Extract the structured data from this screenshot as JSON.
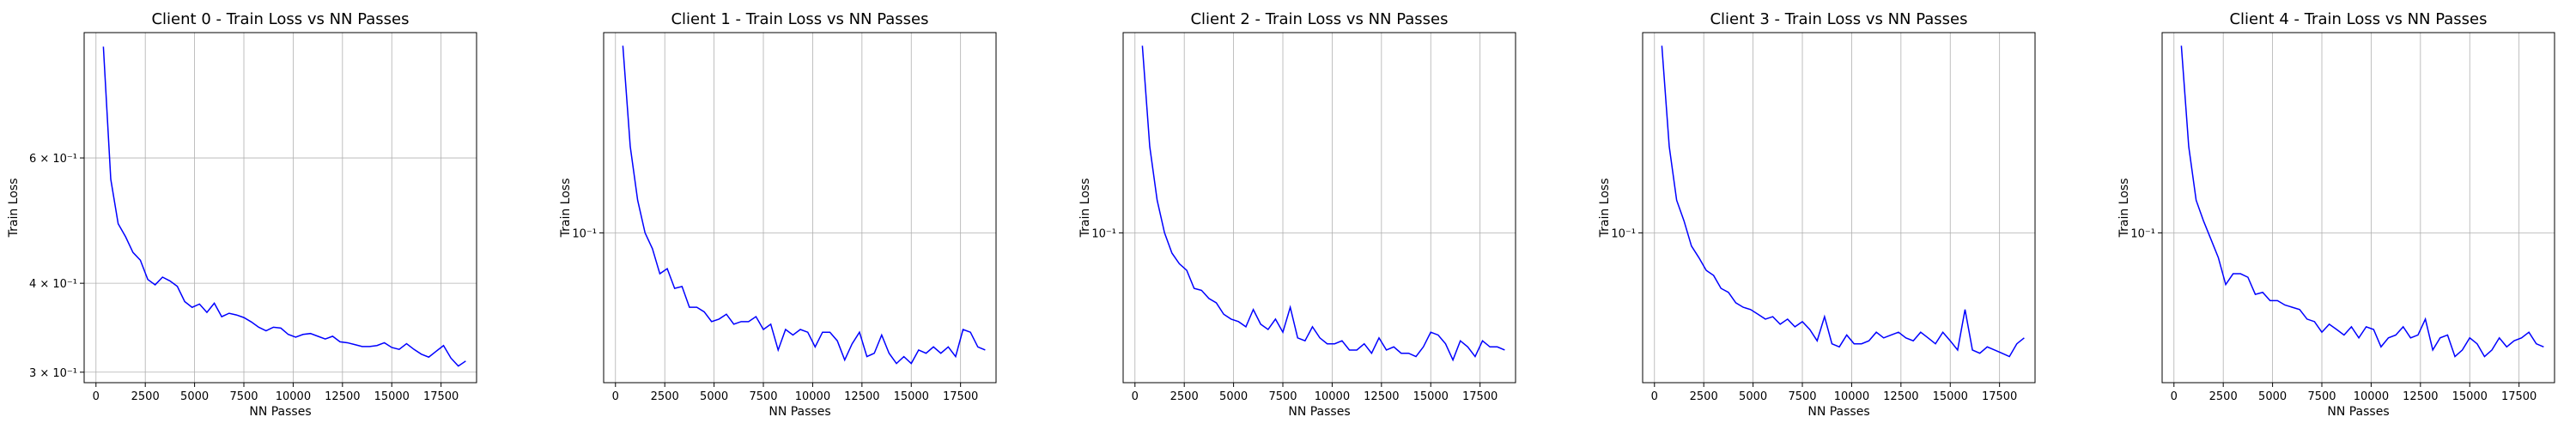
{
  "chart_data": [
    {
      "type": "line",
      "title": "Client 0 - Train Loss vs NN Passes",
      "xlabel": "NN Passes",
      "ylabel": "Train Loss",
      "yscale": "log",
      "ylim": [
        0.29,
        0.9
      ],
      "xlim": [
        -600,
        19300
      ],
      "grid": true,
      "xticks": [
        0,
        2500,
        5000,
        7500,
        10000,
        12500,
        15000,
        17500
      ],
      "yticks": [
        {
          "value": 0.6,
          "label": "6 × 10⁻¹"
        },
        {
          "value": 0.4,
          "label": "4 × 10⁻¹"
        },
        {
          "value": 0.3,
          "label": "3 × 10⁻¹"
        }
      ],
      "color": "#0000ff",
      "x": [
        375,
        750,
        1125,
        1500,
        1875,
        2250,
        2625,
        3000,
        3375,
        3750,
        4125,
        4500,
        4875,
        5250,
        5625,
        6000,
        6375,
        6750,
        7125,
        7500,
        7875,
        8250,
        8625,
        9000,
        9375,
        9750,
        10125,
        10500,
        10875,
        11250,
        11625,
        12000,
        12375,
        12750,
        13125,
        13500,
        13875,
        14250,
        14625,
        15000,
        15375,
        15750,
        16125,
        16500,
        16875,
        17250,
        17625,
        18000,
        18375,
        18750
      ],
      "y": [
        0.86,
        0.56,
        0.485,
        0.465,
        0.442,
        0.431,
        0.405,
        0.398,
        0.408,
        0.403,
        0.396,
        0.377,
        0.37,
        0.374,
        0.364,
        0.375,
        0.359,
        0.363,
        0.361,
        0.358,
        0.353,
        0.347,
        0.343,
        0.347,
        0.346,
        0.339,
        0.336,
        0.339,
        0.34,
        0.337,
        0.334,
        0.337,
        0.331,
        0.33,
        0.328,
        0.326,
        0.326,
        0.327,
        0.33,
        0.325,
        0.323,
        0.329,
        0.323,
        0.318,
        0.315,
        0.321,
        0.327,
        0.314,
        0.306,
        0.311
      ]
    },
    {
      "type": "line",
      "title": "Client 1 - Train Loss vs NN Passes",
      "xlabel": "NN Passes",
      "ylabel": "Train Loss",
      "yscale": "log",
      "ylim": [
        0.03,
        0.5
      ],
      "xlim": [
        -600,
        19300
      ],
      "grid": true,
      "xticks": [
        0,
        2500,
        5000,
        7500,
        10000,
        12500,
        15000,
        17500
      ],
      "yticks": [
        {
          "value": 0.1,
          "label": "10⁻¹"
        }
      ],
      "color": "#0000ff",
      "x": [
        375,
        750,
        1125,
        1500,
        1875,
        2250,
        2625,
        3000,
        3375,
        3750,
        4125,
        4500,
        4875,
        5250,
        5625,
        6000,
        6375,
        6750,
        7125,
        7500,
        7875,
        8250,
        8625,
        9000,
        9375,
        9750,
        10125,
        10500,
        10875,
        11250,
        11625,
        12000,
        12375,
        12750,
        13125,
        13500,
        13875,
        14250,
        14625,
        15000,
        15375,
        15750,
        16125,
        16500,
        16875,
        17250,
        17625,
        18000,
        18375,
        18750
      ],
      "y": [
        0.45,
        0.2,
        0.13,
        0.1,
        0.088,
        0.072,
        0.075,
        0.064,
        0.065,
        0.055,
        0.055,
        0.053,
        0.049,
        0.05,
        0.052,
        0.048,
        0.049,
        0.049,
        0.051,
        0.046,
        0.048,
        0.039,
        0.046,
        0.044,
        0.046,
        0.045,
        0.04,
        0.045,
        0.045,
        0.042,
        0.036,
        0.041,
        0.045,
        0.037,
        0.038,
        0.044,
        0.038,
        0.035,
        0.037,
        0.035,
        0.039,
        0.038,
        0.04,
        0.038,
        0.04,
        0.037,
        0.046,
        0.045,
        0.04,
        0.039
      ]
    },
    {
      "type": "line",
      "title": "Client 2 - Train Loss vs NN Passes",
      "xlabel": "NN Passes",
      "ylabel": "Train Loss",
      "yscale": "log",
      "ylim": [
        0.03,
        0.5
      ],
      "xlim": [
        -600,
        19300
      ],
      "grid": true,
      "xticks": [
        0,
        2500,
        5000,
        7500,
        10000,
        12500,
        15000,
        17500
      ],
      "yticks": [
        {
          "value": 0.1,
          "label": "10⁻¹"
        }
      ],
      "color": "#0000ff",
      "x": [
        375,
        750,
        1125,
        1500,
        1875,
        2250,
        2625,
        3000,
        3375,
        3750,
        4125,
        4500,
        4875,
        5250,
        5625,
        6000,
        6375,
        6750,
        7125,
        7500,
        7875,
        8250,
        8625,
        9000,
        9375,
        9750,
        10125,
        10500,
        10875,
        11250,
        11625,
        12000,
        12375,
        12750,
        13125,
        13500,
        13875,
        14250,
        14625,
        15000,
        15375,
        15750,
        16125,
        16500,
        16875,
        17250,
        17625,
        18000,
        18375,
        18750
      ],
      "y": [
        0.45,
        0.2,
        0.13,
        0.1,
        0.085,
        0.078,
        0.074,
        0.064,
        0.063,
        0.059,
        0.057,
        0.052,
        0.05,
        0.049,
        0.047,
        0.054,
        0.048,
        0.046,
        0.05,
        0.045,
        0.055,
        0.043,
        0.042,
        0.047,
        0.043,
        0.041,
        0.041,
        0.042,
        0.039,
        0.039,
        0.041,
        0.038,
        0.043,
        0.039,
        0.04,
        0.038,
        0.038,
        0.037,
        0.04,
        0.045,
        0.044,
        0.041,
        0.036,
        0.042,
        0.04,
        0.037,
        0.042,
        0.04,
        0.04,
        0.039
      ]
    },
    {
      "type": "line",
      "title": "Client 3 - Train Loss vs NN Passes",
      "xlabel": "NN Passes",
      "ylabel": "Train Loss",
      "yscale": "log",
      "ylim": [
        0.03,
        0.5
      ],
      "xlim": [
        -600,
        19300
      ],
      "grid": true,
      "xticks": [
        0,
        2500,
        5000,
        7500,
        10000,
        12500,
        15000,
        17500
      ],
      "yticks": [
        {
          "value": 0.1,
          "label": "10⁻¹"
        }
      ],
      "color": "#0000ff",
      "x": [
        375,
        750,
        1125,
        1500,
        1875,
        2250,
        2625,
        3000,
        3375,
        3750,
        4125,
        4500,
        4875,
        5250,
        5625,
        6000,
        6375,
        6750,
        7125,
        7500,
        7875,
        8250,
        8625,
        9000,
        9375,
        9750,
        10125,
        10500,
        10875,
        11250,
        11625,
        12000,
        12375,
        12750,
        13125,
        13500,
        13875,
        14250,
        14625,
        15000,
        15375,
        15750,
        16125,
        16500,
        16875,
        17250,
        17625,
        18000,
        18375,
        18750
      ],
      "y": [
        0.45,
        0.2,
        0.13,
        0.11,
        0.09,
        0.082,
        0.074,
        0.071,
        0.064,
        0.062,
        0.057,
        0.055,
        0.054,
        0.052,
        0.05,
        0.051,
        0.048,
        0.05,
        0.047,
        0.049,
        0.046,
        0.042,
        0.051,
        0.041,
        0.04,
        0.044,
        0.041,
        0.041,
        0.042,
        0.045,
        0.043,
        0.044,
        0.045,
        0.043,
        0.042,
        0.045,
        0.043,
        0.041,
        0.045,
        0.042,
        0.039,
        0.054,
        0.039,
        0.038,
        0.04,
        0.039,
        0.038,
        0.037,
        0.041,
        0.043
      ]
    },
    {
      "type": "line",
      "title": "Client 4 - Train Loss vs NN Passes",
      "xlabel": "NN Passes",
      "ylabel": "Train Loss",
      "yscale": "log",
      "ylim": [
        0.03,
        0.5
      ],
      "xlim": [
        -600,
        19300
      ],
      "grid": true,
      "xticks": [
        0,
        2500,
        5000,
        7500,
        10000,
        12500,
        15000,
        17500
      ],
      "yticks": [
        {
          "value": 0.1,
          "label": "10⁻¹"
        }
      ],
      "color": "#0000ff",
      "x": [
        375,
        750,
        1125,
        1500,
        1875,
        2250,
        2625,
        3000,
        3375,
        3750,
        4125,
        4500,
        4875,
        5250,
        5625,
        6000,
        6375,
        6750,
        7125,
        7500,
        7875,
        8250,
        8625,
        9000,
        9375,
        9750,
        10125,
        10500,
        10875,
        11250,
        11625,
        12000,
        12375,
        12750,
        13125,
        13500,
        13875,
        14250,
        14625,
        15000,
        15375,
        15750,
        16125,
        16500,
        16875,
        17250,
        17625,
        18000,
        18375,
        18750
      ],
      "y": [
        0.45,
        0.2,
        0.13,
        0.11,
        0.095,
        0.082,
        0.066,
        0.072,
        0.072,
        0.07,
        0.061,
        0.062,
        0.058,
        0.058,
        0.056,
        0.055,
        0.054,
        0.05,
        0.049,
        0.045,
        0.048,
        0.046,
        0.044,
        0.047,
        0.043,
        0.047,
        0.046,
        0.04,
        0.043,
        0.044,
        0.047,
        0.043,
        0.044,
        0.05,
        0.039,
        0.043,
        0.044,
        0.037,
        0.039,
        0.043,
        0.041,
        0.037,
        0.039,
        0.043,
        0.04,
        0.042,
        0.043,
        0.045,
        0.041,
        0.04
      ]
    }
  ]
}
